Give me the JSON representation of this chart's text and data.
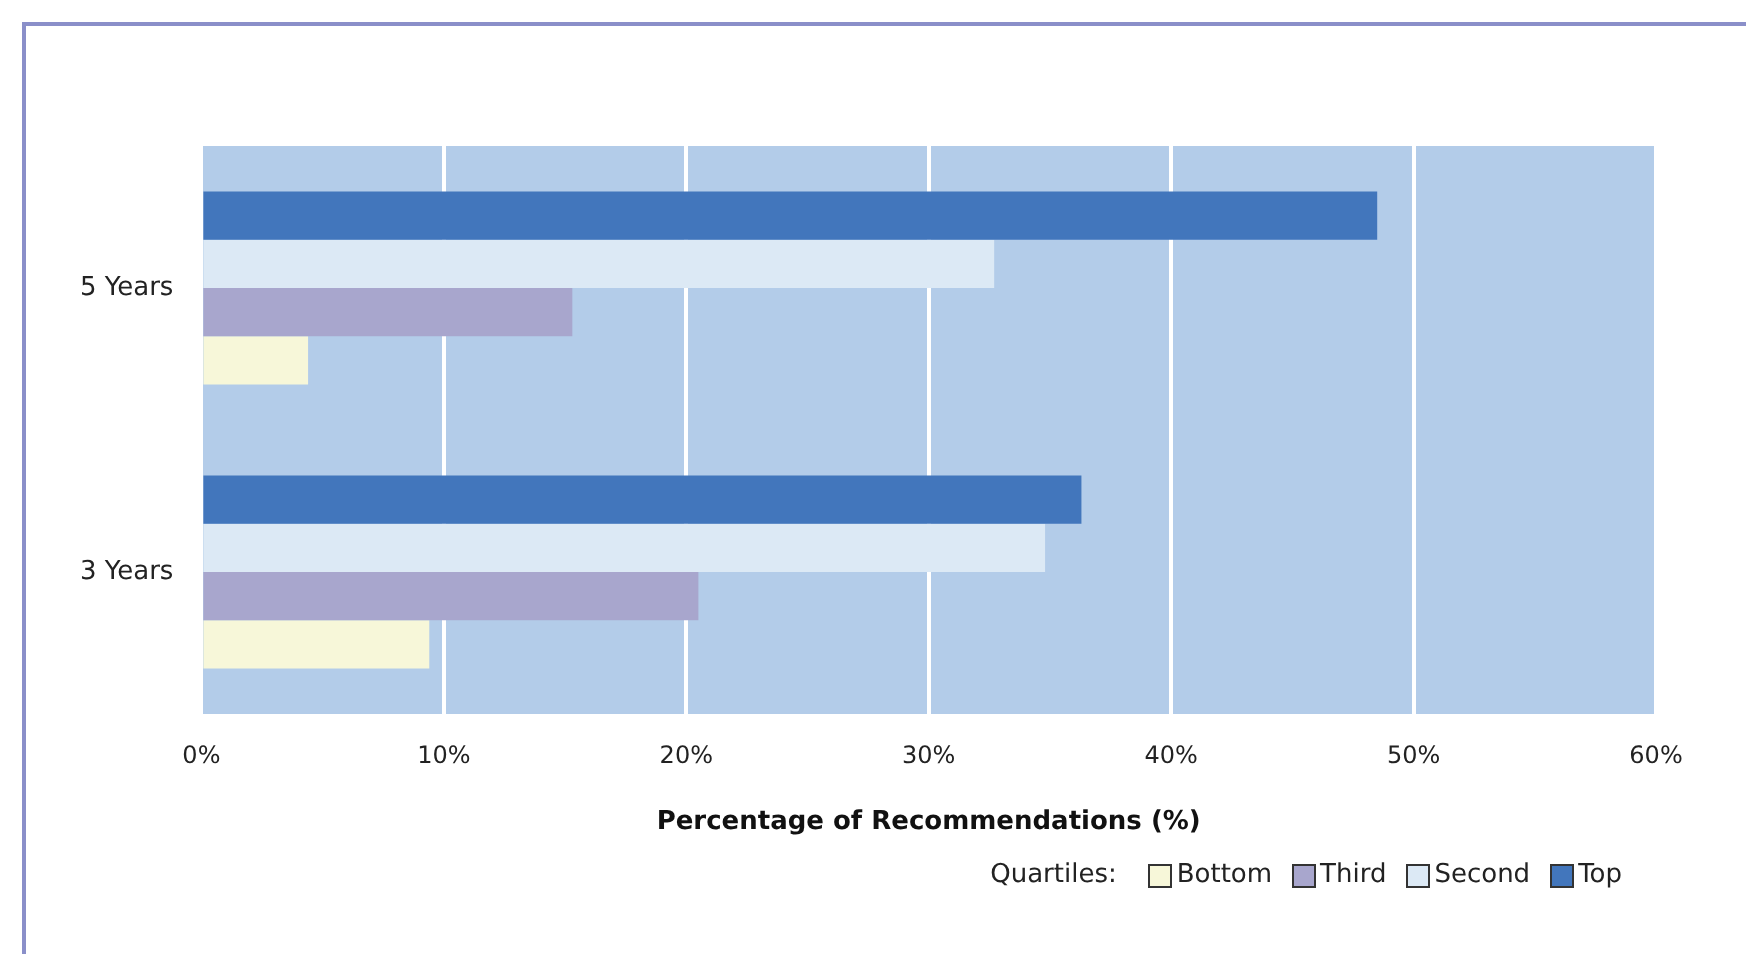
{
  "chart_data": {
    "type": "bar",
    "orientation": "horizontal",
    "xlabel": "Percentage of Recommendations (%)",
    "legend_title": "Quartiles:",
    "legend": "bottom right",
    "grid": "x",
    "categories": [
      "5 Years",
      "3 Years"
    ],
    "xlim": [
      0,
      60
    ],
    "xticks": [
      {
        "value": 0,
        "label": "0%"
      },
      {
        "value": 10,
        "label": "10%"
      },
      {
        "value": 20,
        "label": "20%"
      },
      {
        "value": 30,
        "label": "30%"
      },
      {
        "value": 40,
        "label": "40%"
      },
      {
        "value": 50,
        "label": "50%"
      },
      {
        "value": 60,
        "label": "60%"
      }
    ],
    "series": [
      {
        "name": "Top",
        "color": "#4276bc",
        "values": [
          48.5,
          36.3
        ]
      },
      {
        "name": "Second",
        "color": "#dce9f5",
        "values": [
          32.7,
          34.8
        ]
      },
      {
        "name": "Third",
        "color": "#a8a6cd",
        "values": [
          15.3,
          20.5
        ]
      },
      {
        "name": "Bottom",
        "color": "#f7f7d9",
        "values": [
          4.4,
          9.4
        ]
      }
    ]
  }
}
